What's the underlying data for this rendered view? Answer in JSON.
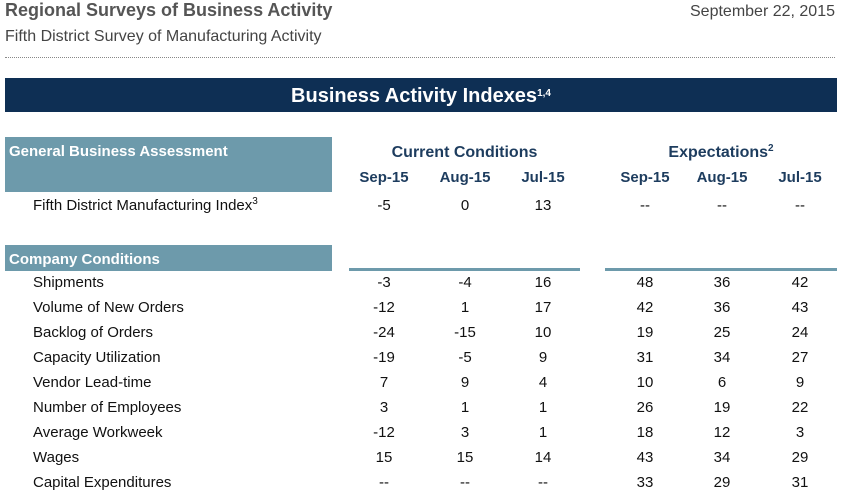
{
  "header": {
    "title": "Regional Surveys of Business Activity",
    "date": "September 22, 2015",
    "subtitle": "Fifth District Survey of Manufacturing Activity"
  },
  "banner": {
    "title": "Business Activity Indexes",
    "superscript": "1,4"
  },
  "column_groups": [
    {
      "label": "Current Conditions"
    },
    {
      "label": "Expectations",
      "superscript": "2"
    }
  ],
  "columns": [
    "Sep-15",
    "Aug-15",
    "Jul-15",
    "Sep-15",
    "Aug-15",
    "Jul-15"
  ],
  "sections": [
    {
      "title": "General Business Assessment",
      "rows": [
        {
          "label": "Fifth District Manufacturing Index",
          "superscript": "3",
          "values": [
            -5,
            0,
            13,
            "--",
            "--",
            "--"
          ]
        }
      ]
    },
    {
      "title": "Company Conditions",
      "rows": [
        {
          "label": "Shipments",
          "values": [
            -3,
            -4,
            16,
            48,
            36,
            42
          ]
        },
        {
          "label": "Volume of New Orders",
          "values": [
            -12,
            1,
            17,
            42,
            36,
            43
          ]
        },
        {
          "label": "Backlog of Orders",
          "values": [
            -24,
            -15,
            10,
            19,
            25,
            24
          ]
        },
        {
          "label": "Capacity Utilization",
          "values": [
            -19,
            -5,
            9,
            31,
            34,
            27
          ]
        },
        {
          "label": "Vendor Lead-time",
          "values": [
            7,
            9,
            4,
            10,
            6,
            9
          ]
        },
        {
          "label": "Number of Employees",
          "values": [
            3,
            1,
            1,
            26,
            19,
            22
          ]
        },
        {
          "label": "Average Workweek",
          "values": [
            -12,
            3,
            1,
            18,
            12,
            3
          ]
        },
        {
          "label": "Wages",
          "values": [
            15,
            15,
            14,
            43,
            34,
            29
          ]
        },
        {
          "label": "Capital Expenditures",
          "values": [
            "--",
            "--",
            "--",
            33,
            29,
            31
          ]
        }
      ]
    }
  ]
}
